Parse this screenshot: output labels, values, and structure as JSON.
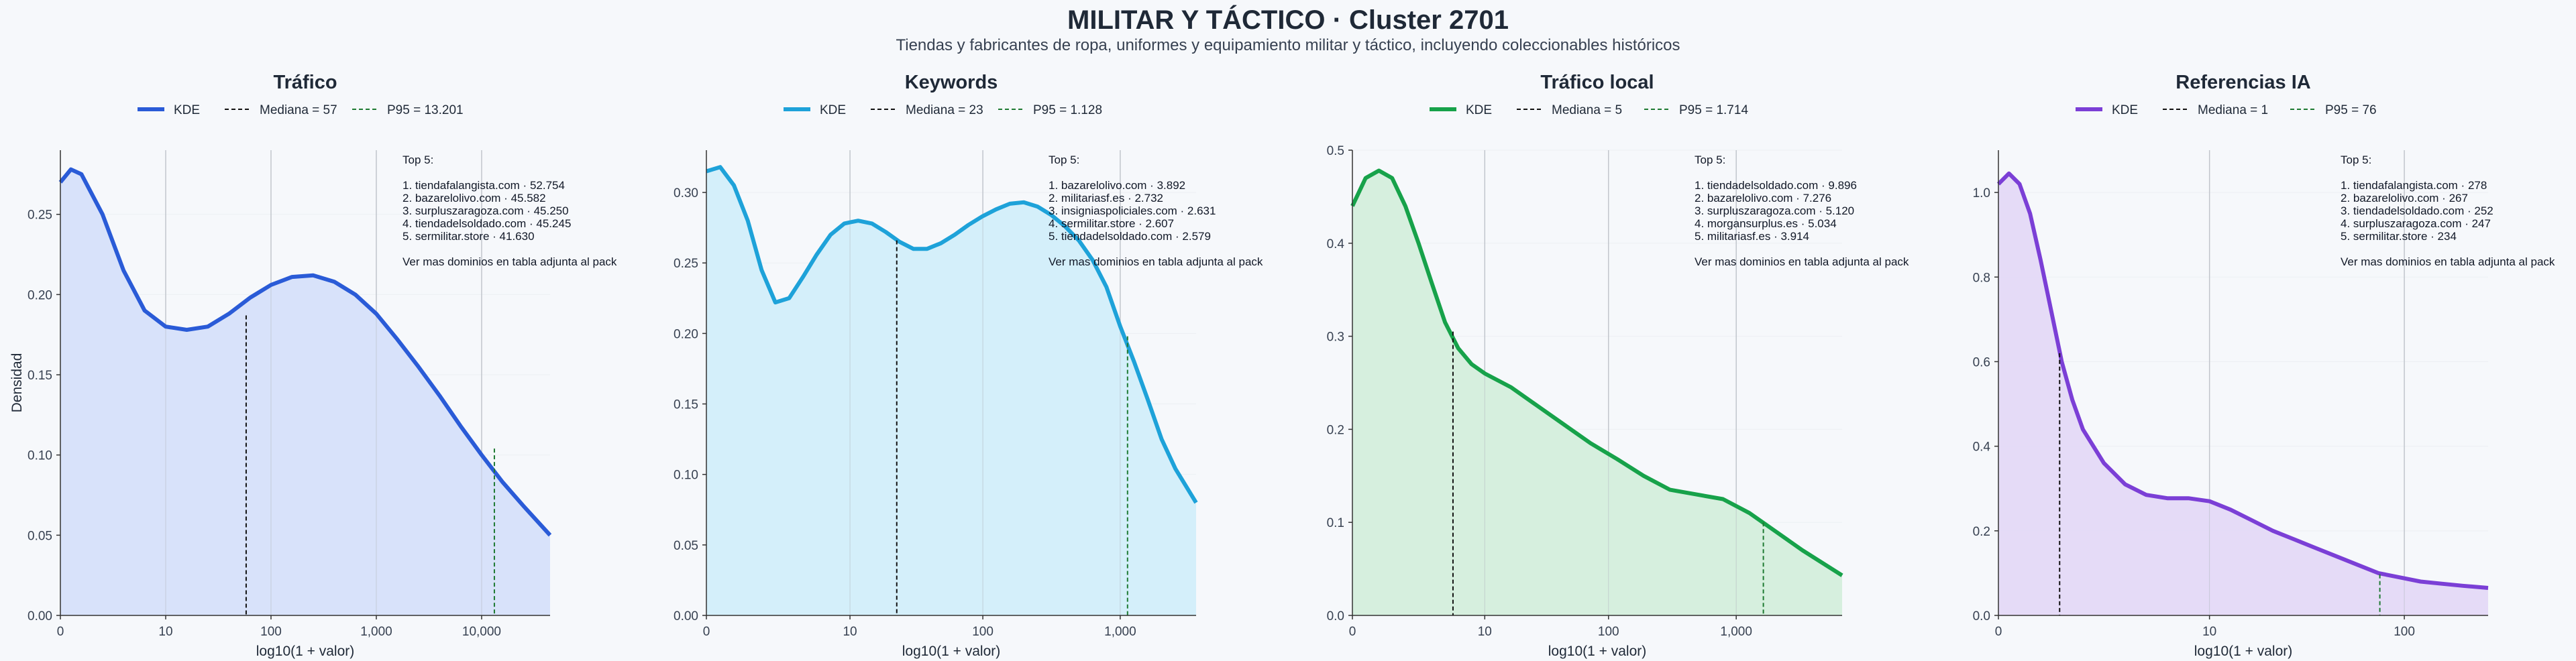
{
  "header": {
    "title": "MILITAR Y TÁCTICO · Cluster 2701",
    "subtitle": "Tiendas y fabricantes de ropa, uniformes y equipamiento militar y táctico, incluyendo coleccionables históricos"
  },
  "chart_data": [
    {
      "type": "line",
      "title": "Tráfico",
      "color": "#2a5bd7",
      "fill": "#d6e0fa",
      "xlabel": "log10(1 + valor)",
      "ylabel": "Densidad",
      "xlim": [
        0,
        4.65
      ],
      "ylim": [
        0,
        0.29
      ],
      "xticks": [
        {
          "v": 0,
          "label": "0"
        },
        {
          "v": 1,
          "label": "10"
        },
        {
          "v": 2,
          "label": "100"
        },
        {
          "v": 3,
          "label": "1,000"
        },
        {
          "v": 4,
          "label": "10,000"
        }
      ],
      "yticks": [
        {
          "v": 0,
          "label": "0.00"
        },
        {
          "v": 0.05,
          "label": "0.05"
        },
        {
          "v": 0.1,
          "label": "0.10"
        },
        {
          "v": 0.15,
          "label": "0.15"
        },
        {
          "v": 0.2,
          "label": "0.20"
        },
        {
          "v": 0.25,
          "label": "0.25"
        }
      ],
      "x": [
        0,
        0.1,
        0.2,
        0.4,
        0.6,
        0.8,
        1.0,
        1.2,
        1.4,
        1.6,
        1.8,
        2.0,
        2.2,
        2.4,
        2.6,
        2.8,
        3.0,
        3.2,
        3.4,
        3.6,
        3.8,
        4.0,
        4.2,
        4.4,
        4.65
      ],
      "y": [
        0.27,
        0.278,
        0.275,
        0.25,
        0.215,
        0.19,
        0.18,
        0.178,
        0.18,
        0.188,
        0.198,
        0.206,
        0.211,
        0.212,
        0.208,
        0.2,
        0.188,
        0.172,
        0.155,
        0.137,
        0.118,
        0.1,
        0.083,
        0.068,
        0.05
      ],
      "median_x": 1.764,
      "median_y": 0.187,
      "p95_x": 4.121,
      "p95_y": 0.104,
      "legend": {
        "kde": "KDE",
        "median": "Mediana = 57",
        "p95": "P95 = 13.201"
      },
      "top5": {
        "heading": "Top 5:",
        "items": [
          "1. tiendafalangista.com · 52.754",
          "2. bazarelolivo.com · 45.582",
          "3. surpluszaragoza.com · 45.250",
          "4. tiendadelsoldado.com · 45.245",
          "5. sermilitar.store · 41.630"
        ],
        "footer": "Ver mas dominios en tabla adjunta al pack"
      }
    },
    {
      "type": "line",
      "title": "Keywords",
      "color": "#1ea2d9",
      "fill": "#d2eefa",
      "xlabel": "log10(1 + valor)",
      "ylabel": "",
      "xlim": [
        0,
        3.55
      ],
      "ylim": [
        0,
        0.33
      ],
      "xticks": [
        {
          "v": 0,
          "label": "0"
        },
        {
          "v": 1.041,
          "label": "10"
        },
        {
          "v": 2.004,
          "label": "100"
        },
        {
          "v": 3.0,
          "label": "1,000"
        }
      ],
      "yticks": [
        {
          "v": 0,
          "label": "0.00"
        },
        {
          "v": 0.05,
          "label": "0.05"
        },
        {
          "v": 0.1,
          "label": "0.10"
        },
        {
          "v": 0.15,
          "label": "0.15"
        },
        {
          "v": 0.2,
          "label": "0.20"
        },
        {
          "v": 0.25,
          "label": "0.25"
        },
        {
          "v": 0.3,
          "label": "0.30"
        }
      ],
      "x": [
        0,
        0.1,
        0.2,
        0.3,
        0.4,
        0.5,
        0.6,
        0.7,
        0.8,
        0.9,
        1.0,
        1.1,
        1.2,
        1.3,
        1.4,
        1.5,
        1.6,
        1.7,
        1.8,
        1.9,
        2.0,
        2.1,
        2.2,
        2.3,
        2.4,
        2.5,
        2.6,
        2.7,
        2.8,
        2.9,
        3.0,
        3.1,
        3.2,
        3.3,
        3.4,
        3.55
      ],
      "y": [
        0.315,
        0.318,
        0.305,
        0.28,
        0.245,
        0.222,
        0.225,
        0.24,
        0.256,
        0.27,
        0.278,
        0.28,
        0.278,
        0.272,
        0.265,
        0.26,
        0.26,
        0.264,
        0.27,
        0.277,
        0.283,
        0.288,
        0.292,
        0.293,
        0.29,
        0.284,
        0.276,
        0.266,
        0.252,
        0.233,
        0.205,
        0.18,
        0.153,
        0.125,
        0.104,
        0.08
      ],
      "median_x": 1.38,
      "median_y": 0.266,
      "p95_x": 3.053,
      "p95_y": 0.198,
      "legend": {
        "kde": "KDE",
        "median": "Mediana = 23",
        "p95": "P95 = 1.128"
      },
      "top5": {
        "heading": "Top 5:",
        "items": [
          "1. bazarelolivo.com · 3.892",
          "2. militariasf.es · 2.732",
          "3. insigniaspoliciales.com · 2.631",
          "4. sermilitar.store · 2.607",
          "5. tiendadelsoldado.com · 2.579"
        ],
        "footer": "Ver mas dominios en tabla adjunta al pack"
      }
    },
    {
      "type": "line",
      "title": "Tráfico local",
      "color": "#17a24a",
      "fill": "#d4eedc",
      "xlabel": "log10(1 + valor)",
      "ylabel": "",
      "xlim": [
        0,
        3.7
      ],
      "ylim": [
        0,
        0.5
      ],
      "xticks": [
        {
          "v": 0,
          "label": "0"
        },
        {
          "v": 1.0,
          "label": "10"
        },
        {
          "v": 1.935,
          "label": "100"
        },
        {
          "v": 2.9,
          "label": "1,000"
        }
      ],
      "yticks": [
        {
          "v": 0,
          "label": "0.0"
        },
        {
          "v": 0.1,
          "label": "0.1"
        },
        {
          "v": 0.2,
          "label": "0.2"
        },
        {
          "v": 0.3,
          "label": "0.3"
        },
        {
          "v": 0.4,
          "label": "0.4"
        },
        {
          "v": 0.5,
          "label": "0.5"
        }
      ],
      "x": [
        0,
        0.1,
        0.2,
        0.3,
        0.4,
        0.5,
        0.6,
        0.7,
        0.8,
        0.9,
        1.0,
        1.2,
        1.4,
        1.6,
        1.8,
        2.0,
        2.2,
        2.4,
        2.6,
        2.8,
        3.0,
        3.2,
        3.4,
        3.7
      ],
      "y": [
        0.44,
        0.47,
        0.478,
        0.47,
        0.44,
        0.4,
        0.357,
        0.315,
        0.287,
        0.27,
        0.26,
        0.245,
        0.225,
        0.205,
        0.185,
        0.168,
        0.15,
        0.135,
        0.13,
        0.125,
        0.11,
        0.09,
        0.07,
        0.043
      ],
      "median_x": 0.76,
      "median_y": 0.305,
      "p95_x": 3.105,
      "p95_y": 0.1,
      "legend": {
        "kde": "KDE",
        "median": "Mediana = 5",
        "p95": "P95 = 1.714"
      },
      "top5": {
        "heading": "Top 5:",
        "items": [
          "1. tiendadelsoldado.com · 9.896",
          "2. bazarelolivo.com · 7.276",
          "3. surpluszaragoza.com · 5.120",
          "4. morgansurplus.es · 5.034",
          "5. militariasf.es · 3.914"
        ],
        "footer": "Ver mas dominios en tabla adjunta al pack"
      }
    },
    {
      "type": "line",
      "title": "Referencias IA",
      "color": "#7b3fd6",
      "fill": "#e4d9f7",
      "xlabel": "log10(1 + valor)",
      "ylabel": "",
      "xlim": [
        0,
        2.32
      ],
      "ylim": [
        0,
        1.1
      ],
      "xticks": [
        {
          "v": 0,
          "label": "0"
        },
        {
          "v": 1.0,
          "label": "10"
        },
        {
          "v": 1.923,
          "label": "100"
        }
      ],
      "yticks": [
        {
          "v": 0,
          "label": "0.0"
        },
        {
          "v": 0.2,
          "label": "0.2"
        },
        {
          "v": 0.4,
          "label": "0.4"
        },
        {
          "v": 0.6,
          "label": "0.6"
        },
        {
          "v": 0.8,
          "label": "0.8"
        },
        {
          "v": 1.0,
          "label": "1.0"
        }
      ],
      "x": [
        0,
        0.05,
        0.1,
        0.15,
        0.2,
        0.25,
        0.3,
        0.35,
        0.4,
        0.5,
        0.6,
        0.7,
        0.8,
        0.9,
        1.0,
        1.1,
        1.2,
        1.3,
        1.4,
        1.5,
        1.6,
        1.7,
        1.8,
        1.9,
        2.0,
        2.1,
        2.2,
        2.32
      ],
      "y": [
        1.02,
        1.045,
        1.02,
        0.95,
        0.84,
        0.72,
        0.6,
        0.51,
        0.44,
        0.36,
        0.31,
        0.285,
        0.277,
        0.277,
        0.27,
        0.25,
        0.225,
        0.2,
        0.18,
        0.16,
        0.14,
        0.12,
        0.1,
        0.09,
        0.08,
        0.075,
        0.07,
        0.065
      ],
      "median_x": 0.29,
      "median_y": 0.62,
      "p95_x": 1.807,
      "p95_y": 0.097,
      "legend": {
        "kde": "KDE",
        "median": "Mediana = 1",
        "p95": "P95 = 76"
      },
      "top5": {
        "heading": "Top 5:",
        "items": [
          "1. tiendafalangista.com · 278",
          "2. bazarelolivo.com · 267",
          "3. tiendadelsoldado.com · 252",
          "4. surpluszaragoza.com · 247",
          "5. sermilitar.store · 234"
        ],
        "footer": "Ver mas dominios en tabla adjunta al pack"
      }
    }
  ]
}
